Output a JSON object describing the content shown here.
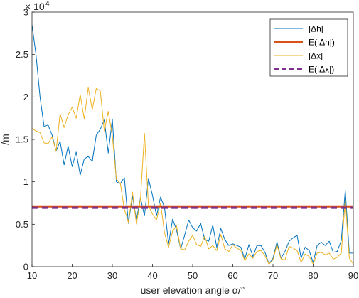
{
  "chart_data": {
    "type": "line",
    "xlabel": "user elevation angle α/°",
    "ylabel": "/m",
    "y_exponent_label": "× 10",
    "y_exponent_value": "4",
    "xlim": [
      10,
      90
    ],
    "ylim": [
      0,
      30000
    ],
    "xticks": [
      10,
      20,
      30,
      40,
      50,
      60,
      70,
      80,
      90
    ],
    "yticks": [
      0,
      5000,
      10000,
      15000,
      20000,
      25000,
      30000
    ],
    "ytick_labels": [
      "0",
      "0.5",
      "1",
      "1.5",
      "2",
      "2.5",
      "3"
    ],
    "xtick_labels": [
      "10",
      "20",
      "30",
      "40",
      "50",
      "60",
      "70",
      "80",
      "90"
    ],
    "grid": false,
    "legend_position": "top-right",
    "series": [
      {
        "name": "|Δh|",
        "style": "line",
        "color": "#0072BD",
        "x": [
          10,
          11,
          12,
          13,
          14,
          15,
          16,
          17,
          18,
          19,
          20,
          21,
          22,
          23,
          24,
          25,
          26,
          27,
          28,
          29,
          30,
          31,
          32,
          33,
          34,
          35,
          36,
          37,
          38,
          39,
          40,
          41,
          42,
          43,
          44,
          45,
          46,
          47,
          48,
          49,
          50,
          51,
          52,
          53,
          54,
          55,
          56,
          57,
          58,
          59,
          60,
          61,
          62,
          63,
          64,
          65,
          66,
          67,
          68,
          69,
          70,
          71,
          72,
          73,
          74,
          75,
          76,
          77,
          78,
          79,
          80,
          81,
          82,
          83,
          84,
          85,
          86,
          87,
          88,
          89,
          90
        ],
        "values": [
          28500,
          25000,
          20000,
          16500,
          16700,
          15500,
          13600,
          14800,
          12000,
          14200,
          11800,
          13500,
          10800,
          12700,
          13000,
          12400,
          15500,
          16200,
          17300,
          13400,
          17400,
          10000,
          9800,
          10500,
          5100,
          8300,
          5600,
          8100,
          6000,
          10400,
          8400,
          6000,
          8200,
          7000,
          2700,
          5600,
          4300,
          2100,
          3700,
          5500,
          4600,
          4200,
          5100,
          3200,
          3000,
          4900,
          2300,
          4500,
          3200,
          2500,
          2700,
          2500,
          2300,
          900,
          2600,
          1200,
          2500,
          2500,
          1700,
          300,
          1000,
          2900,
          1000,
          1800,
          3000,
          3400,
          3700,
          1000,
          2300,
          1900,
          500,
          2500,
          2900,
          2500,
          3000,
          1700,
          1800,
          3100,
          9000,
          1600,
          1600
        ]
      },
      {
        "name": "E(|Δh|)",
        "style": "thick-line",
        "color": "#D95319",
        "x": [
          10,
          90
        ],
        "values": [
          7100,
          7100
        ]
      },
      {
        "name": "|Δx|",
        "style": "line",
        "color": "#EDB120",
        "x": [
          10,
          11,
          12,
          13,
          14,
          15,
          16,
          17,
          18,
          19,
          20,
          21,
          22,
          23,
          24,
          25,
          26,
          27,
          28,
          29,
          30,
          31,
          32,
          33,
          34,
          35,
          36,
          37,
          38,
          39,
          40,
          41,
          42,
          43,
          44,
          45,
          46,
          47,
          48,
          49,
          50,
          51,
          52,
          53,
          54,
          55,
          56,
          57,
          58,
          59,
          60,
          61,
          62,
          63,
          64,
          65,
          66,
          67,
          68,
          69,
          70,
          71,
          72,
          73,
          74,
          75,
          76,
          77,
          78,
          79,
          80,
          81,
          82,
          83,
          84,
          85,
          86,
          87,
          88,
          89,
          90
        ],
        "values": [
          16300,
          16000,
          15800,
          14600,
          14500,
          15300,
          13600,
          18000,
          16400,
          17900,
          18800,
          17500,
          20300,
          17400,
          21100,
          18500,
          21000,
          20700,
          16000,
          18300,
          15400,
          10300,
          9800,
          6800,
          5200,
          8800,
          5000,
          8000,
          15700,
          7200,
          6200,
          5500,
          7500,
          4000,
          2300,
          4200,
          4800,
          2100,
          2000,
          3000,
          3700,
          2600,
          2400,
          3600,
          2100,
          2500,
          1900,
          3800,
          2100,
          1800,
          2600,
          2200,
          1900,
          700,
          1500,
          1000,
          1800,
          1900,
          1300,
          300,
          800,
          2600,
          900,
          800,
          2400,
          2200,
          1900,
          500,
          1500,
          1200,
          300,
          1600,
          1700,
          1400,
          1600,
          900,
          1100,
          1600,
          7900,
          1000,
          300
        ]
      },
      {
        "name": "E(|Δx|)",
        "style": "thick-dashed",
        "color": "#7E2F8E",
        "x": [
          10,
          90
        ],
        "values": [
          6950,
          6950
        ]
      }
    ]
  }
}
